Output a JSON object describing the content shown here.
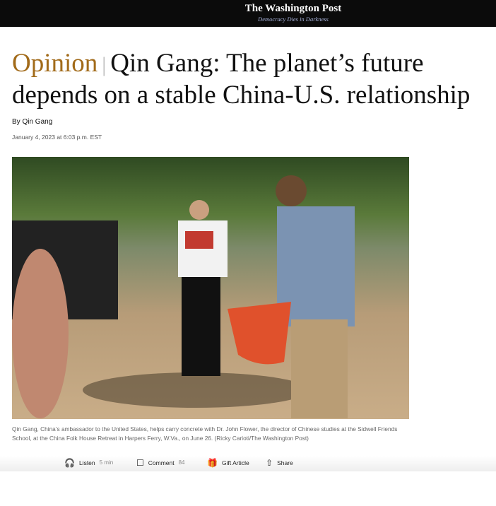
{
  "header": {
    "logo": "The Washington Post",
    "tagline": "Democracy Dies in Darkness"
  },
  "article": {
    "kicker": "Opinion",
    "title": "Qin Gang: The planet’s future depends on a stable China-U.S. relationship",
    "byline": "By Qin Gang",
    "date": "January 4, 2023 at 6:03 p.m. EST",
    "caption": "Qin Gang, China’s ambassador to the United States, helps carry concrete with Dr. John Flower, the director of Chinese studies at the Sidwell Friends School, at the China Folk House Retreat in Harpers Ferry, W.Va., on June 26. (Ricky Carioti/The Washington Post)"
  },
  "actions": [
    {
      "label": "Listen",
      "count": "5 min",
      "icon": "headphones-icon"
    },
    {
      "label": "Comment",
      "count": "84",
      "icon": "comment-icon"
    },
    {
      "label": "Gift Article",
      "icon": "gift-icon"
    },
    {
      "label": "Share",
      "icon": "share-icon"
    }
  ]
}
